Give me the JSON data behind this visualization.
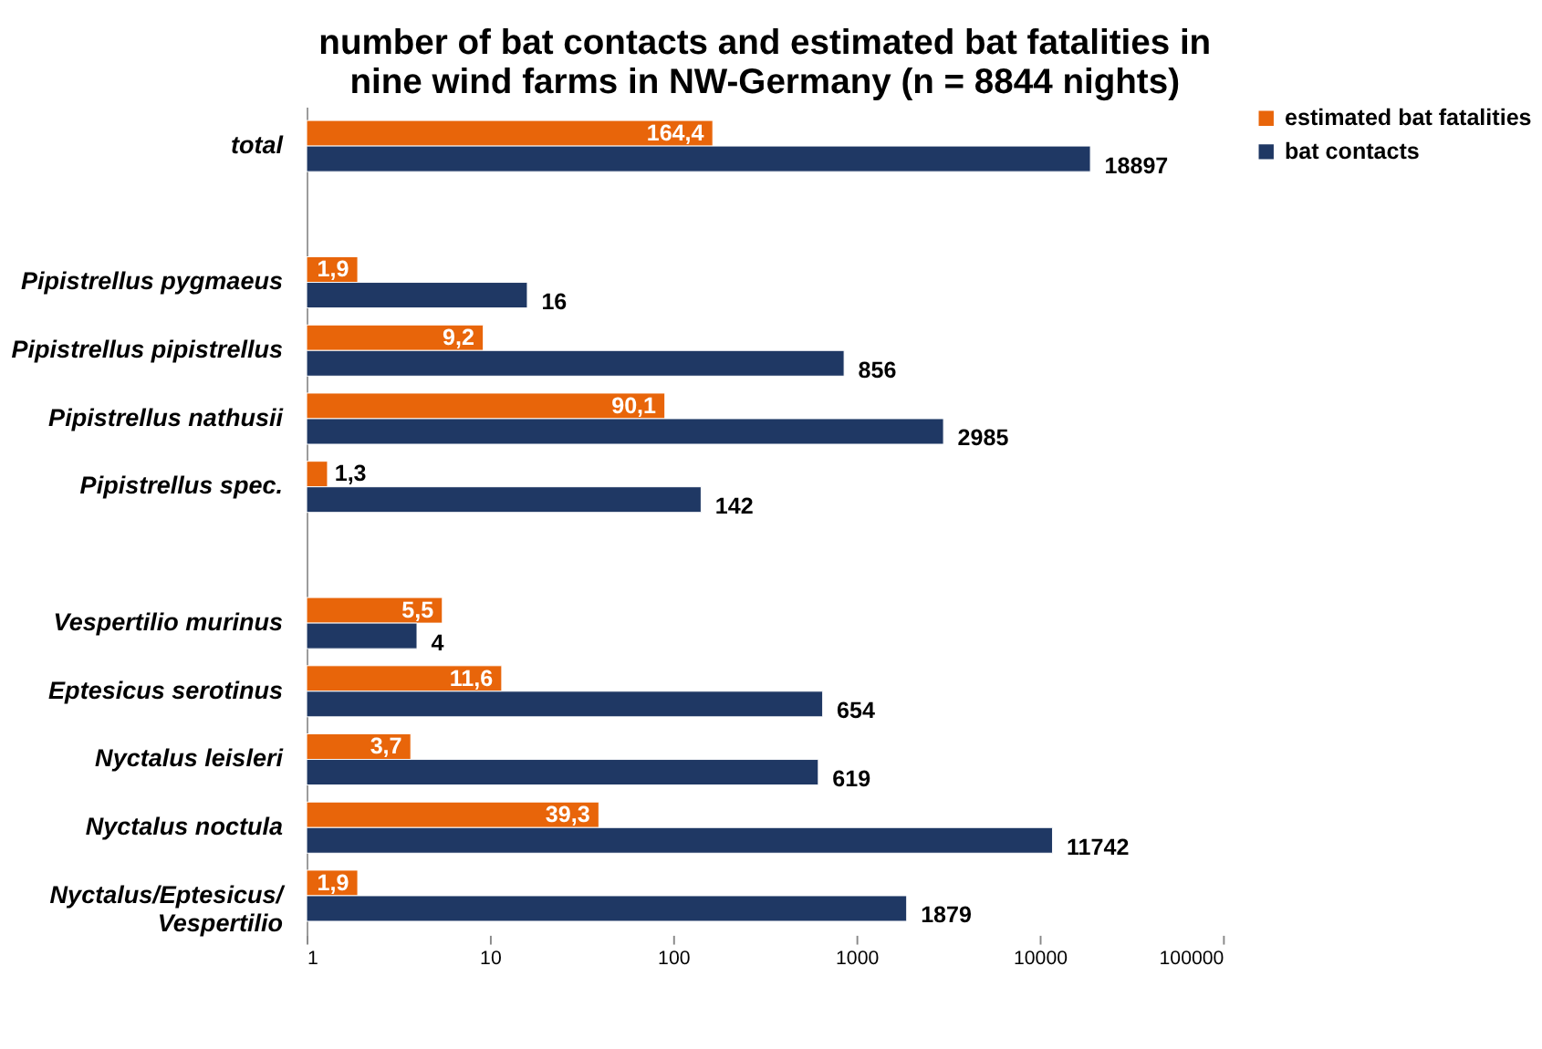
{
  "chart_data": {
    "type": "bar",
    "orientation": "horizontal",
    "title": [
      "number of bat contacts and estimated bat fatalities in",
      "nine wind farms in NW-Germany (n = 8844 nights)"
    ],
    "categories": [
      "total",
      null,
      "Pipistrellus pygmaeus",
      "Pipistrellus pipistrellus",
      "Pipistrellus nathusii",
      "Pipistrellus spec.",
      null,
      "Vespertilio murinus",
      "Eptesicus serotinus",
      "Nyctalus leisleri",
      "Nyctalus noctula",
      "Nyctalus/Eptesicus/Vespertilio"
    ],
    "series": [
      {
        "name": "estimated bat fatalities",
        "color": "#e8650a",
        "values": [
          164.4,
          null,
          1.9,
          9.2,
          90.1,
          1.3,
          null,
          5.5,
          11.6,
          3.7,
          39.3,
          1.9
        ],
        "value_labels": [
          "164,4",
          null,
          "1,9",
          "9,2",
          "90,1",
          "1,3",
          null,
          "5,5",
          "11,6",
          "3,7",
          "39,3",
          "1,9"
        ]
      },
      {
        "name": "bat contacts",
        "color": "#1f3864",
        "values": [
          18897,
          null,
          16,
          856,
          2985,
          142,
          null,
          4,
          654,
          619,
          11742,
          1879
        ],
        "value_labels": [
          "18897",
          null,
          "16",
          "856",
          "2985",
          "142",
          null,
          "4",
          "654",
          "619",
          "11742",
          "1879"
        ]
      }
    ],
    "log": "x",
    "xlim": [
      1,
      100000
    ],
    "xticks": [
      1,
      10,
      100,
      1000,
      10000,
      100000
    ],
    "grid": false,
    "legend": "right"
  }
}
